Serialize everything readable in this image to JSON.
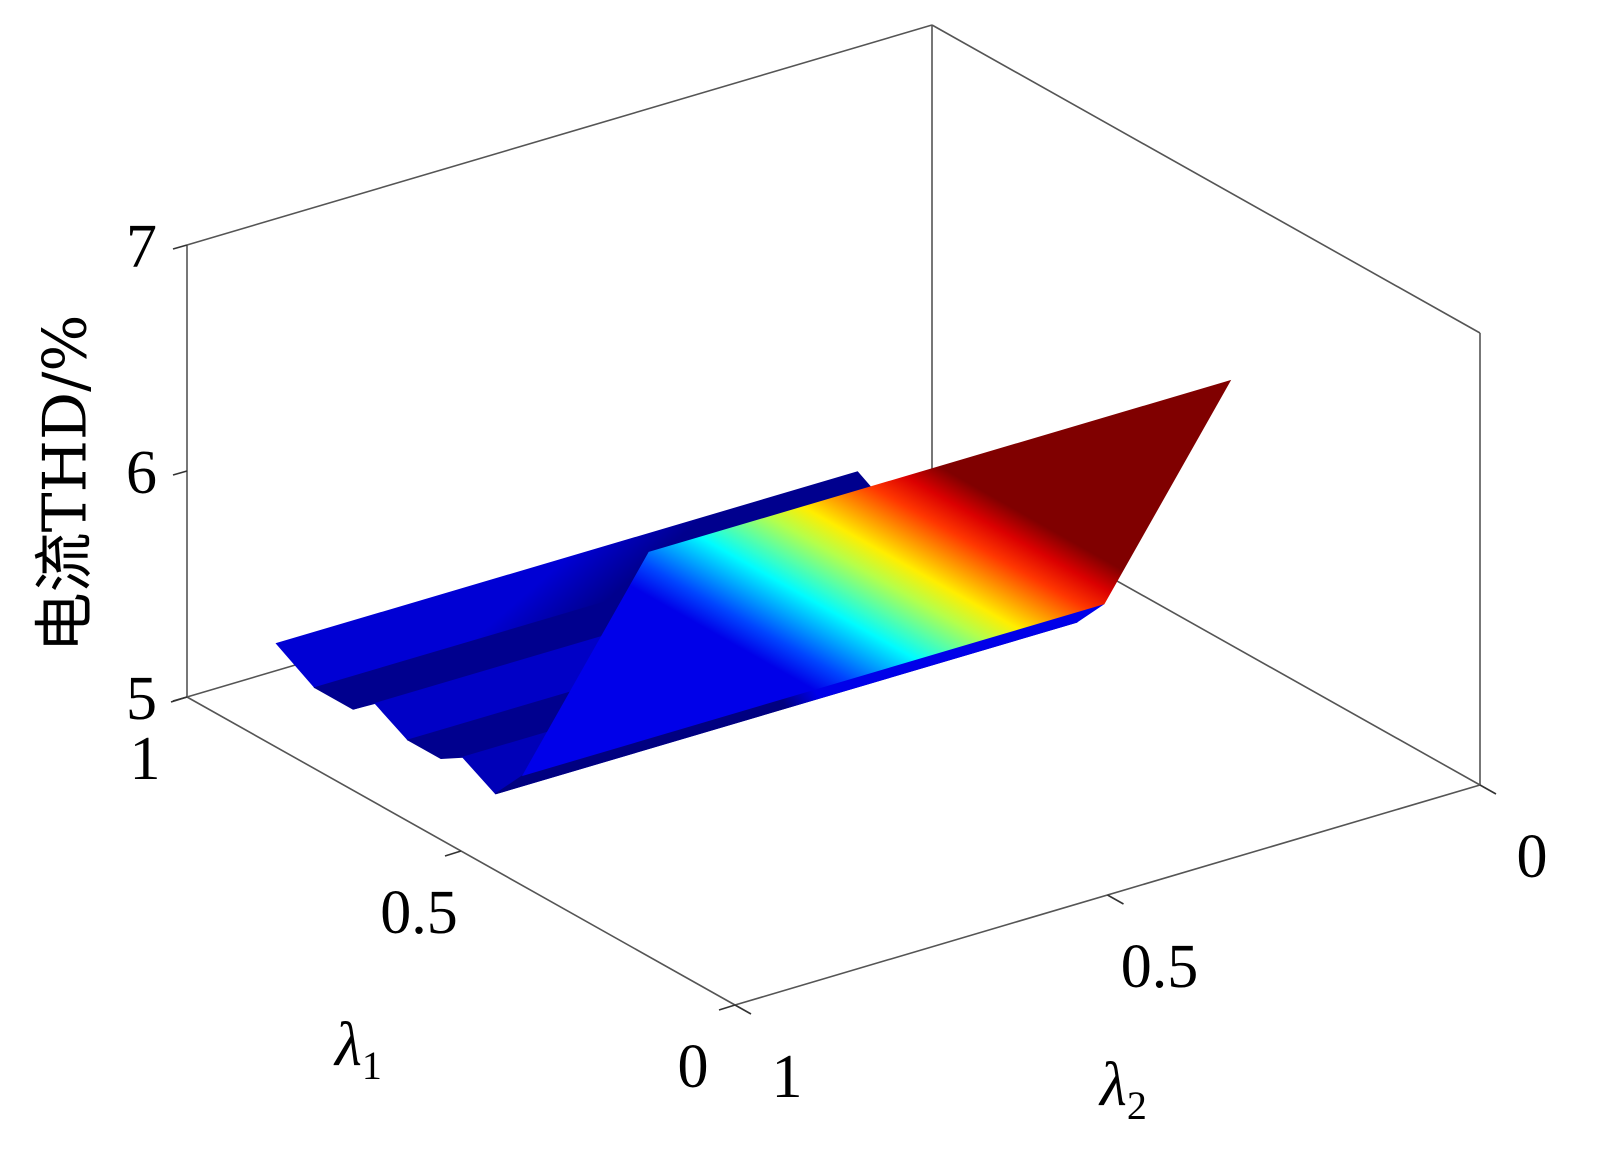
{
  "chart_data": {
    "type": "surface",
    "zlabel": "电流THD/%",
    "xlabel": "λ1",
    "ylabel": "λ2",
    "x_ticks": [
      "1",
      "0.5",
      "0"
    ],
    "y_ticks": [
      "1",
      "0.5",
      "0"
    ],
    "z_ticks": [
      "5",
      "6",
      "7"
    ],
    "xlim": [
      0,
      1
    ],
    "ylim": [
      0,
      1
    ],
    "zlim": [
      5,
      7
    ],
    "colormap": "jet",
    "lambda2_range": [
      0.1,
      0.88
    ],
    "profile_along_lambda1": {
      "lambda1": [
        1.0,
        0.93,
        0.86,
        0.82,
        0.76,
        0.7,
        0.66,
        0.6,
        0.55,
        0.32
      ],
      "thd": [
        5.12,
        5.02,
        5.02,
        5.1,
        5.02,
        5.02,
        5.08,
        5.0,
        5.15,
        6.45
      ]
    },
    "grid": false
  }
}
